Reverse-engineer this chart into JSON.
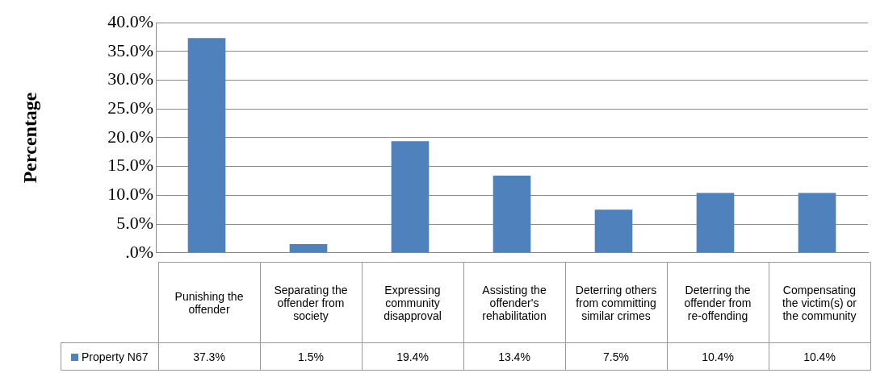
{
  "chart_data": {
    "type": "bar",
    "ylabel": "Percentage",
    "categories": [
      "Punishing the offender",
      "Separating the offender from society",
      "Expressing community disapproval",
      "Assisting the offender's rehabilitation",
      "Deterring others from committing similar crimes",
      "Deterring the offender from re-offending",
      "Compensating the victim(s) or the community"
    ],
    "series": [
      {
        "name": "Property N67",
        "color": "#4f81bd",
        "values": [
          37.3,
          1.5,
          19.4,
          13.4,
          7.5,
          10.4,
          10.4
        ],
        "value_labels": [
          "37.3%",
          "1.5%",
          "19.4%",
          "13.4%",
          "7.5%",
          "10.4%",
          "10.4%"
        ]
      }
    ],
    "ylim": [
      0,
      40
    ],
    "yticks": [
      {
        "value": 0,
        "label": ".0%"
      },
      {
        "value": 5,
        "label": "5.0%"
      },
      {
        "value": 10,
        "label": "10.0%"
      },
      {
        "value": 15,
        "label": "15.0%"
      },
      {
        "value": 20,
        "label": "20.0%"
      },
      {
        "value": 25,
        "label": "25.0%"
      },
      {
        "value": 30,
        "label": "30.0%"
      },
      {
        "value": 35,
        "label": "35.0%"
      },
      {
        "value": 40,
        "label": "40.0%"
      }
    ],
    "grid": "y",
    "legend": "bottom"
  }
}
